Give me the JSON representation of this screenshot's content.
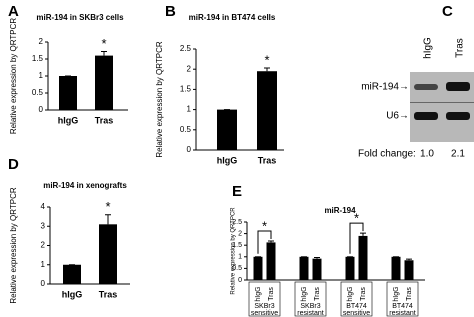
{
  "chart_data": [
    {
      "type": "bar",
      "label": "A",
      "title": "miR-194 in SKBr3 cells",
      "y_label": "Relative expression by QRTPCR",
      "categories": [
        "hIgG",
        "Tras"
      ],
      "values": [
        1,
        1.6
      ],
      "errors": [
        0,
        0.12
      ],
      "significance": [
        null,
        "*"
      ],
      "color": "#000000",
      "ylim": [
        0,
        2
      ],
      "yticks": [
        0,
        0.5,
        1,
        1.5,
        2
      ]
    },
    {
      "type": "bar",
      "label": "B",
      "title": "miR-194 in BT474 cells",
      "y_label": "Relative expression by QRTPCR",
      "categories": [
        "hIgG",
        "Tras"
      ],
      "values": [
        1,
        1.95
      ],
      "errors": [
        0,
        0.08
      ],
      "significance": [
        null,
        "*"
      ],
      "color": "#000000",
      "ylim": [
        0,
        2.5
      ],
      "yticks": [
        0,
        0.5,
        1,
        1.5,
        2,
        2.5
      ]
    },
    {
      "type": "bar",
      "label": "D",
      "title": "miR-194 in xenografts",
      "y_label": "Relative expression by QRTPCR",
      "categories": [
        "hIgG",
        "Tras"
      ],
      "values": [
        1,
        3.1
      ],
      "errors": [
        0,
        0.5
      ],
      "significance": [
        null,
        "*"
      ],
      "color": "#000000",
      "ylim": [
        0,
        4
      ],
      "yticks": [
        0,
        1,
        2,
        3,
        4
      ]
    },
    {
      "type": "bar",
      "label": "E",
      "title": "miR-194",
      "y_label": "Relative expression by QRTPCR",
      "categories": [
        "hIgG",
        "Tras",
        "hIgG",
        "Tras",
        "hIgG",
        "Tras",
        "hIgG",
        "Tras"
      ],
      "values": [
        1,
        1.62,
        1,
        0.92,
        1,
        1.9,
        1,
        0.85
      ],
      "errors": [
        0,
        0.06,
        0,
        0.05,
        0,
        0.12,
        0,
        0.05
      ],
      "significance": [
        null,
        "*",
        null,
        null,
        null,
        "*",
        null,
        null
      ],
      "groups": [
        [
          "SKBr3",
          "sensitive"
        ],
        [
          "SKBr3",
          "resistant"
        ],
        [
          "BT474",
          "sensitive"
        ],
        [
          "BT474",
          "resistant"
        ]
      ],
      "color": "#000000",
      "ylim": [
        0,
        2.5
      ],
      "yticks": [
        0,
        0.5,
        1,
        1.5,
        2,
        2.5
      ]
    }
  ],
  "blot": {
    "label": "C",
    "lanes": [
      "hIgG",
      "Tras"
    ],
    "bands": [
      "miR-194→",
      "U6→"
    ],
    "fold_change_label": "Fold change:",
    "fold_changes": [
      "1.0",
      "2.1"
    ]
  }
}
